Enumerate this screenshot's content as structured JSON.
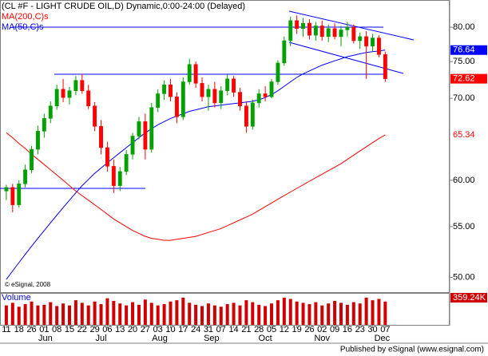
{
  "chart_data": {
    "type": "candlestick",
    "title": "(CL #F - LIGHT CRUDE OIL,D) Dynamic,0:00-24:00 (Delayed)",
    "copyright": "© eSignal, 2008",
    "footer": "Published by eSignal (www.esignal.com)",
    "log_scale": true,
    "ylim": [
      48.7,
      84.2
    ],
    "yticks": [
      {
        "value": 80,
        "label": "80.00"
      },
      {
        "value": 75,
        "label": "75.00"
      },
      {
        "value": 70,
        "label": "70.00"
      },
      {
        "value": 60,
        "label": "60.00"
      },
      {
        "value": 55,
        "label": "55.00"
      },
      {
        "value": 50,
        "label": "50.00"
      }
    ],
    "xlim": [
      -1.0,
      70.2
    ],
    "xticks": [
      {
        "value": 0,
        "label": "11"
      },
      {
        "value": 2,
        "label": "18"
      },
      {
        "value": 4,
        "label": "26"
      },
      {
        "value": 6,
        "label": "01"
      },
      {
        "value": 8,
        "label": "08"
      },
      {
        "value": 10,
        "label": "15"
      },
      {
        "value": 12,
        "label": "22"
      },
      {
        "value": 14,
        "label": "29"
      },
      {
        "value": 16,
        "label": "06"
      },
      {
        "value": 18,
        "label": "13"
      },
      {
        "value": 20,
        "label": "20"
      },
      {
        "value": 22,
        "label": "27"
      },
      {
        "value": 24,
        "label": "03"
      },
      {
        "value": 26,
        "label": "10"
      },
      {
        "value": 28,
        "label": "17"
      },
      {
        "value": 30,
        "label": "24"
      },
      {
        "value": 32,
        "label": "31"
      },
      {
        "value": 34,
        "label": "07"
      },
      {
        "value": 36,
        "label": "14"
      },
      {
        "value": 38,
        "label": "21"
      },
      {
        "value": 40,
        "label": "28"
      },
      {
        "value": 42,
        "label": "05"
      },
      {
        "value": 44,
        "label": "12"
      },
      {
        "value": 46,
        "label": "19"
      },
      {
        "value": 48,
        "label": "26"
      },
      {
        "value": 50,
        "label": "02"
      },
      {
        "value": 52,
        "label": "09"
      },
      {
        "value": 54,
        "label": "16"
      },
      {
        "value": 56,
        "label": "23"
      },
      {
        "value": 58,
        "label": "30"
      },
      {
        "value": 60,
        "label": "07"
      }
    ],
    "month_ticks": [
      {
        "value": 6.2,
        "label": "Jun"
      },
      {
        "value": 15,
        "label": "Jul"
      },
      {
        "value": 24.3,
        "label": "Aug"
      },
      {
        "value": 32.5,
        "label": "Sep"
      },
      {
        "value": 41,
        "label": "Oct"
      },
      {
        "value": 50,
        "label": "Nov"
      },
      {
        "value": 59.5,
        "label": "Dec"
      }
    ],
    "candles": {
      "up_color": "#00a000",
      "down_color": "#ff0000",
      "open": [
        58.8,
        59.2,
        57.3,
        59.6,
        61.2,
        63.6,
        65.8,
        67.4,
        69.0,
        71.2,
        70.1,
        71.0,
        72.4,
        71.0,
        69.0,
        66.4,
        63.8,
        61.6,
        59.4,
        61.0,
        63.0,
        65.2,
        67.0,
        63.6,
        68.8,
        70.6,
        71.8,
        70.2,
        67.6,
        72.2,
        74.6,
        72.0,
        70.2,
        71.2,
        69.4,
        71.0,
        72.6,
        70.8,
        69.0,
        66.4,
        69.4,
        70.6,
        70.2,
        72.2,
        74.8,
        78.0,
        81.0,
        79.8,
        80.6,
        78.8,
        80.2,
        78.6,
        79.8,
        78.6,
        79.6,
        80.0,
        78.0,
        78.6,
        77.2,
        78.4,
        76.0
      ],
      "high": [
        59.5,
        59.6,
        60.0,
        61.8,
        64.0,
        66.5,
        68.0,
        69.6,
        71.8,
        72.6,
        71.5,
        73.0,
        73.3,
        71.8,
        69.5,
        67.2,
        64.5,
        62.4,
        61.5,
        63.5,
        65.6,
        67.6,
        68.0,
        69.4,
        71.2,
        72.4,
        72.6,
        70.8,
        72.8,
        75.4,
        75.0,
        72.8,
        71.8,
        72.2,
        71.6,
        73.2,
        73.0,
        71.4,
        69.6,
        69.8,
        71.2,
        71.6,
        72.6,
        75.2,
        78.6,
        81.6,
        81.8,
        81.4,
        81.2,
        80.8,
        81.0,
        80.4,
        80.6,
        80.2,
        80.8,
        80.4,
        79.2,
        79.4,
        79.0,
        78.8,
        76.4
      ],
      "low": [
        57.8,
        56.5,
        57.0,
        59.2,
        60.8,
        63.0,
        65.0,
        66.8,
        68.5,
        69.5,
        69.2,
        70.4,
        70.6,
        68.6,
        65.8,
        63.0,
        61.0,
        58.6,
        58.8,
        60.6,
        62.4,
        64.8,
        62.4,
        63.2,
        68.2,
        69.8,
        69.6,
        66.8,
        67.2,
        71.8,
        71.4,
        69.6,
        68.4,
        68.8,
        68.6,
        70.4,
        70.2,
        68.4,
        65.6,
        66.0,
        68.8,
        69.6,
        70.0,
        71.8,
        74.4,
        77.2,
        79.0,
        78.6,
        78.2,
        78.0,
        78.0,
        77.8,
        78.2,
        77.2,
        78.6,
        77.6,
        76.8,
        72.6,
        76.4,
        75.6,
        72.2
      ],
      "close": [
        59.2,
        57.3,
        59.6,
        61.2,
        63.6,
        65.8,
        67.4,
        69.0,
        71.2,
        70.1,
        71.0,
        72.4,
        71.0,
        69.0,
        66.4,
        63.8,
        61.6,
        59.4,
        61.0,
        63.0,
        65.2,
        67.0,
        63.6,
        68.8,
        70.6,
        71.8,
        70.2,
        67.6,
        72.2,
        74.6,
        72.0,
        70.2,
        71.2,
        69.4,
        71.0,
        72.6,
        70.8,
        69.0,
        66.4,
        69.4,
        70.6,
        70.2,
        72.2,
        74.8,
        78.0,
        81.0,
        79.8,
        80.6,
        78.8,
        80.2,
        78.6,
        79.8,
        78.6,
        79.6,
        80.0,
        78.0,
        78.6,
        77.2,
        78.4,
        76.0,
        72.62
      ]
    },
    "series": [
      {
        "name": "MA(200,C)s",
        "color": "#ff0000",
        "values": [
          65.6,
          65.0,
          64.3,
          63.7,
          63.0,
          62.4,
          61.8,
          61.2,
          60.6,
          60.0,
          59.4,
          58.8,
          58.3,
          57.8,
          57.3,
          56.8,
          56.3,
          55.8,
          55.4,
          55.0,
          54.6,
          54.3,
          54.0,
          53.8,
          53.7,
          53.6,
          53.6,
          53.7,
          53.8,
          53.9,
          54.0,
          54.2,
          54.4,
          54.6,
          54.8,
          55.1,
          55.4,
          55.7,
          56.0,
          56.3,
          56.7,
          57.1,
          57.5,
          57.9,
          58.3,
          58.7,
          59.1,
          59.5,
          59.9,
          60.3,
          60.7,
          61.1,
          61.5,
          61.9,
          62.4,
          62.9,
          63.4,
          63.9,
          64.4,
          64.9,
          65.34
        ]
      },
      {
        "name": "MA(50,C)s",
        "color": "#0000ff",
        "values": [
          49.8,
          50.6,
          51.4,
          52.2,
          53.0,
          53.8,
          54.6,
          55.4,
          56.2,
          57.0,
          57.8,
          58.6,
          59.4,
          60.1,
          60.8,
          61.4,
          62.0,
          62.6,
          63.2,
          63.8,
          64.4,
          65.0,
          65.6,
          66.1,
          66.6,
          67.0,
          67.4,
          67.7,
          68.0,
          68.3,
          68.5,
          68.7,
          68.9,
          69.0,
          69.1,
          69.2,
          69.3,
          69.4,
          69.5,
          69.6,
          69.8,
          70.1,
          70.5,
          71.0,
          71.6,
          72.2,
          72.8,
          73.3,
          73.7,
          74.1,
          74.5,
          74.8,
          75.1,
          75.4,
          75.7,
          75.9,
          76.1,
          76.3,
          76.4,
          76.5,
          76.64
        ]
      }
    ],
    "volume": {
      "name": "Volume",
      "color": "#d00000",
      "ylim": [
        0,
        480
      ],
      "last_value_label": "359.24K",
      "values": [
        300,
        340,
        280,
        320,
        360,
        300,
        310,
        350,
        290,
        330,
        300,
        380,
        340,
        300,
        360,
        320,
        410,
        370,
        330,
        300,
        350,
        310,
        390,
        340,
        300,
        320,
        360,
        380,
        420,
        340,
        310,
        290,
        330,
        300,
        280,
        320,
        340,
        300,
        380,
        350,
        310,
        290,
        330,
        380,
        420,
        400,
        360,
        340,
        320,
        350,
        300,
        330,
        370,
        340,
        310,
        350,
        330,
        420,
        380,
        400,
        359.24
      ]
    }
  }
}
